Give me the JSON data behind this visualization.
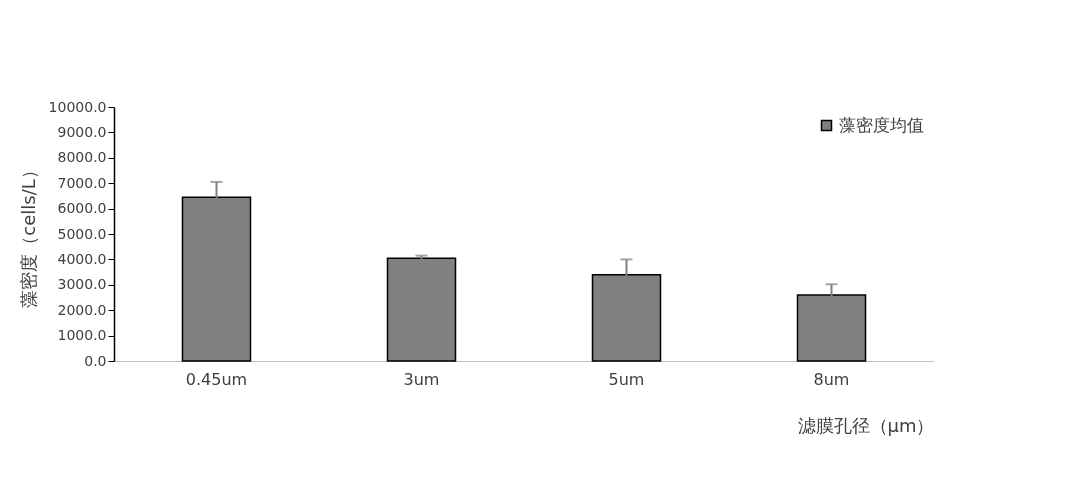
{
  "chart_data": {
    "type": "bar",
    "categories": [
      "0.45um",
      "3um",
      "5um",
      "8um"
    ],
    "series": [
      {
        "name": "藻密度均值",
        "color": "#808080",
        "values": [
          6450,
          4050,
          3400,
          2600
        ],
        "errors": [
          600,
          100,
          600,
          420
        ]
      }
    ],
    "xlabel": "滤膜孔径（μm）",
    "ylabel": "藻密度（cells/L）",
    "ylim": [
      0,
      10000
    ],
    "yticks": [
      {
        "value": 0,
        "label": "0.0"
      },
      {
        "value": 1000,
        "label": "1000.0"
      },
      {
        "value": 2000,
        "label": "2000.0"
      },
      {
        "value": 3000,
        "label": "3000.0"
      },
      {
        "value": 4000,
        "label": "4000.0"
      },
      {
        "value": 5000,
        "label": "5000.0"
      },
      {
        "value": 6000,
        "label": "6000.0"
      },
      {
        "value": 7000,
        "label": "7000.0"
      },
      {
        "value": 8000,
        "label": "8000.0"
      },
      {
        "value": 9000,
        "label": "9000.0"
      },
      {
        "value": 10000,
        "label": "10000.0"
      }
    ],
    "grid": false,
    "legend": "top right"
  }
}
